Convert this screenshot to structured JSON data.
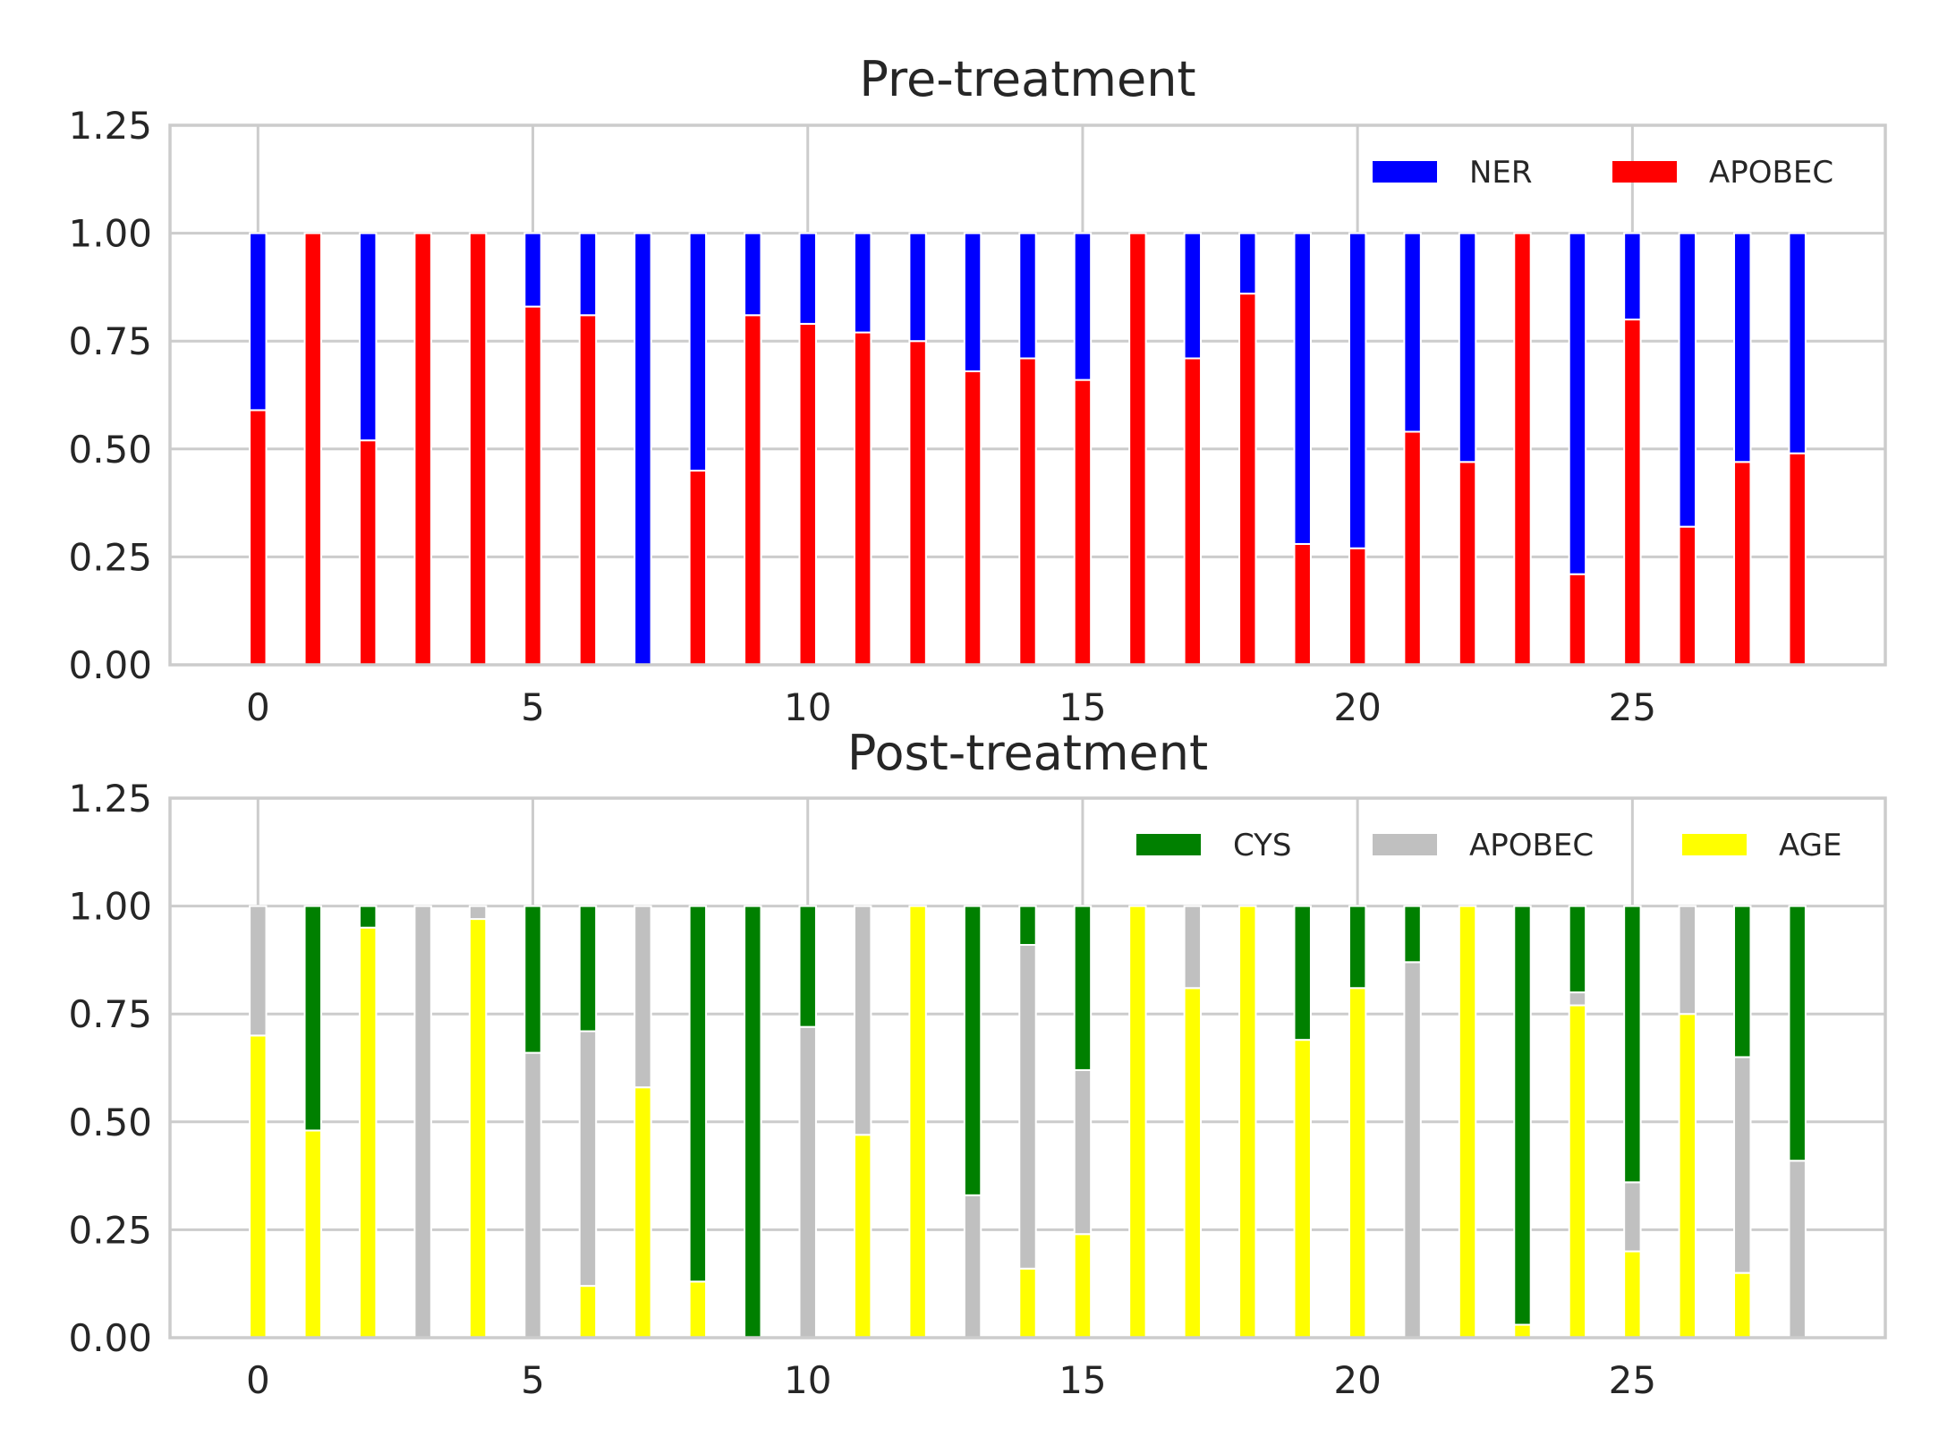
{
  "chart_data": [
    {
      "type": "bar",
      "stacked": true,
      "title": "Pre-treatment",
      "xlabel": "",
      "ylabel": "",
      "x": [
        0,
        1,
        2,
        3,
        4,
        5,
        6,
        7,
        8,
        9,
        10,
        11,
        12,
        13,
        14,
        15,
        16,
        17,
        18,
        19,
        20,
        21,
        22,
        23,
        24,
        25,
        26,
        27,
        28
      ],
      "xticks": [
        0,
        5,
        10,
        15,
        20,
        25
      ],
      "xlim": [
        -1.6,
        29.6
      ],
      "ylim": [
        0,
        1.25
      ],
      "yticks": [
        "0.00",
        "0.25",
        "0.50",
        "0.75",
        "1.00",
        "1.25"
      ],
      "grid": true,
      "legend_position": "top-right",
      "legend_columns": 2,
      "series": [
        {
          "name": "APOBEC",
          "color": "#ff0000",
          "values": [
            0.59,
            1.0,
            0.52,
            1.0,
            1.0,
            0.83,
            0.81,
            0.0,
            0.45,
            0.81,
            0.79,
            0.77,
            0.75,
            0.68,
            0.71,
            0.66,
            1.0,
            0.71,
            0.86,
            0.28,
            0.27,
            0.54,
            0.47,
            1.0,
            0.21,
            0.8,
            0.32,
            0.47,
            0.49
          ]
        },
        {
          "name": "NER",
          "color": "#0000ff",
          "values": [
            0.41,
            0.0,
            0.48,
            0.0,
            0.0,
            0.17,
            0.19,
            1.0,
            0.55,
            0.19,
            0.21,
            0.23,
            0.25,
            0.32,
            0.29,
            0.34,
            0.0,
            0.29,
            0.14,
            0.72,
            0.73,
            0.46,
            0.53,
            0.0,
            0.79,
            0.2,
            0.68,
            0.53,
            0.51
          ]
        }
      ],
      "legend_order": [
        "NER",
        "APOBEC"
      ]
    },
    {
      "type": "bar",
      "stacked": true,
      "title": "Post-treatment",
      "xlabel": "",
      "ylabel": "",
      "x": [
        0,
        1,
        2,
        3,
        4,
        5,
        6,
        7,
        8,
        9,
        10,
        11,
        12,
        13,
        14,
        15,
        16,
        17,
        18,
        19,
        20,
        21,
        22,
        23,
        24,
        25,
        26,
        27,
        28
      ],
      "xticks": [
        0,
        5,
        10,
        15,
        20,
        25
      ],
      "xlim": [
        -1.6,
        29.6
      ],
      "ylim": [
        0,
        1.25
      ],
      "yticks": [
        "0.00",
        "0.25",
        "0.50",
        "0.75",
        "1.00",
        "1.25"
      ],
      "grid": true,
      "legend_position": "top-right",
      "legend_columns": 3,
      "series": [
        {
          "name": "AGE",
          "color": "#ffff00",
          "values": [
            0.7,
            0.48,
            0.95,
            0.0,
            0.97,
            0.0,
            0.12,
            0.58,
            0.13,
            0.0,
            0.0,
            0.47,
            1.0,
            0.0,
            0.16,
            0.24,
            1.0,
            0.81,
            1.0,
            0.69,
            0.81,
            0.0,
            1.0,
            0.03,
            0.77,
            0.2,
            0.75,
            0.15,
            0.0
          ]
        },
        {
          "name": "APOBEC",
          "color": "#c0c0c0",
          "values": [
            0.3,
            0.0,
            0.0,
            1.0,
            0.03,
            0.66,
            0.59,
            0.42,
            0.0,
            0.0,
            0.72,
            0.53,
            0.0,
            0.33,
            0.75,
            0.38,
            0.0,
            0.19,
            0.0,
            0.0,
            0.0,
            0.87,
            0.0,
            0.0,
            0.03,
            0.16,
            0.25,
            0.5,
            0.41
          ]
        },
        {
          "name": "CYS",
          "color": "#008000",
          "values": [
            0.0,
            0.52,
            0.05,
            0.0,
            0.0,
            0.34,
            0.29,
            0.0,
            0.87,
            1.0,
            0.28,
            0.0,
            0.0,
            0.67,
            0.09,
            0.38,
            0.0,
            0.0,
            0.0,
            0.31,
            0.19,
            0.13,
            0.0,
            0.97,
            0.2,
            0.64,
            0.0,
            0.35,
            0.59
          ]
        }
      ],
      "legend_order": [
        "CYS",
        "APOBEC",
        "AGE"
      ]
    }
  ]
}
